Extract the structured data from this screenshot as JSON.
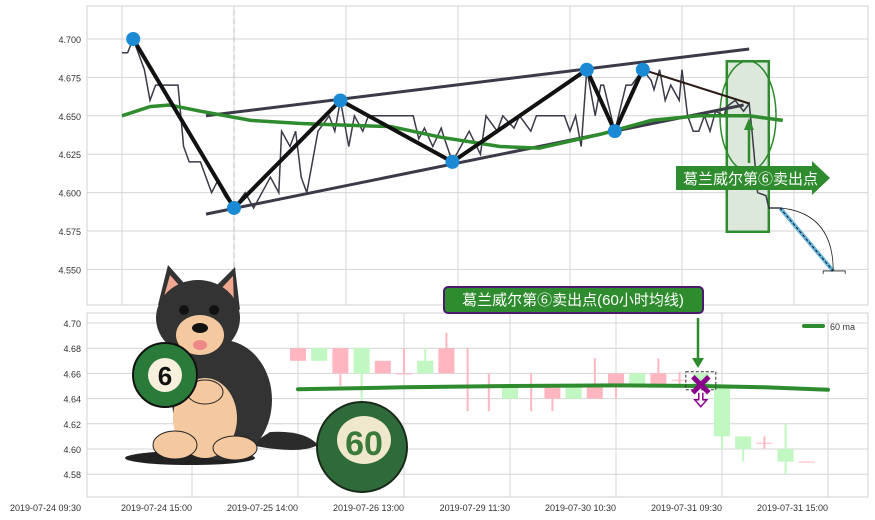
{
  "colors": {
    "price_line": "#3a3a48",
    "zigzag": "#111111",
    "pivot": "#1a8ad4",
    "ma": "#2e8b2e",
    "candle_up": "#ffb6c1",
    "candle_down": "#c1f7c1",
    "grid": "#d4d4d4",
    "annotation_green": "#2e8b2e",
    "annotation_border": "#4b1a6e",
    "sell_marker": "#8b008b"
  },
  "chart_data": [
    {
      "type": "line",
      "panel": "top",
      "ylim": [
        4.527,
        4.7215
      ],
      "xlim": [
        -12.5,
        266
      ],
      "grid": true,
      "yticks": [
        "4.700",
        "4.675",
        "4.650",
        "4.625",
        "4.600",
        "4.575",
        "4.550"
      ],
      "ytick_values": [
        4.7,
        4.675,
        4.65,
        4.625,
        4.6,
        4.575,
        4.55
      ],
      "xgrid_values": [
        0,
        40,
        80,
        120,
        160,
        200,
        240
      ],
      "dashed_vline": 40,
      "price": [
        [
          0,
          4.691
        ],
        [
          2,
          4.691
        ],
        [
          4,
          4.7
        ],
        [
          8,
          4.68
        ],
        [
          10,
          4.66
        ],
        [
          12,
          4.67
        ],
        [
          15,
          4.67
        ],
        [
          20,
          4.67
        ],
        [
          21,
          4.65
        ],
        [
          22,
          4.63
        ],
        [
          24,
          4.62
        ],
        [
          28,
          4.62
        ],
        [
          32,
          4.6
        ],
        [
          34,
          4.607
        ],
        [
          37,
          4.597
        ],
        [
          40,
          4.59
        ],
        [
          44,
          4.6
        ],
        [
          47,
          4.59
        ],
        [
          53,
          4.61
        ],
        [
          56,
          4.6
        ],
        [
          57,
          4.64
        ],
        [
          60,
          4.63
        ],
        [
          62,
          4.64
        ],
        [
          64,
          4.61
        ],
        [
          66,
          4.6
        ],
        [
          70,
          4.64
        ],
        [
          74,
          4.65
        ],
        [
          76,
          4.64
        ],
        [
          78,
          4.66
        ],
        [
          81,
          4.63
        ],
        [
          83,
          4.65
        ],
        [
          86,
          4.64
        ],
        [
          88,
          4.65
        ],
        [
          104,
          4.65
        ],
        [
          106,
          4.635
        ],
        [
          108,
          4.642
        ],
        [
          111,
          4.63
        ],
        [
          114,
          4.642
        ],
        [
          115,
          4.636
        ],
        [
          118,
          4.62
        ],
        [
          121,
          4.63
        ],
        [
          124,
          4.64
        ],
        [
          128,
          4.625
        ],
        [
          130,
          4.65
        ],
        [
          134,
          4.64
        ],
        [
          136,
          4.65
        ],
        [
          140,
          4.642
        ],
        [
          142,
          4.65
        ],
        [
          146,
          4.64
        ],
        [
          148,
          4.65
        ],
        [
          158,
          4.65
        ],
        [
          160,
          4.64
        ],
        [
          162,
          4.65
        ],
        [
          164,
          4.63
        ],
        [
          166,
          4.68
        ],
        [
          169,
          4.65
        ],
        [
          171,
          4.67
        ],
        [
          172,
          4.67
        ],
        [
          176,
          4.64
        ],
        [
          180,
          4.67
        ],
        [
          182,
          4.67
        ],
        [
          186,
          4.68
        ],
        [
          189,
          4.673
        ],
        [
          190,
          4.667
        ],
        [
          192,
          4.68
        ],
        [
          194,
          4.66
        ],
        [
          196,
          4.67
        ],
        [
          199,
          4.66
        ],
        [
          200,
          4.68
        ],
        [
          202,
          4.65
        ],
        [
          204,
          4.64
        ],
        [
          206,
          4.64
        ],
        [
          208,
          4.65
        ],
        [
          210,
          4.64
        ],
        [
          212,
          4.653
        ],
        [
          215,
          4.65
        ],
        [
          216,
          4.656
        ],
        [
          219,
          4.66
        ],
        [
          222,
          4.653
        ],
        [
          224,
          4.658
        ],
        [
          225,
          4.64
        ],
        [
          227,
          4.6
        ],
        [
          230,
          4.598
        ],
        [
          231,
          4.59
        ],
        [
          235,
          4.59
        ]
      ],
      "zigzag": [
        [
          4,
          4.7
        ],
        [
          40,
          4.59
        ],
        [
          78,
          4.66
        ],
        [
          118,
          4.62
        ],
        [
          166,
          4.68
        ],
        [
          176,
          4.64
        ],
        [
          186,
          4.68
        ]
      ],
      "trend_from_last_pivot": [
        [
          186,
          4.68
        ],
        [
          224,
          4.658
        ]
      ],
      "channel_upper": [
        [
          30,
          4.65
        ],
        [
          224,
          4.6935
        ]
      ],
      "channel_lower": [
        [
          30,
          4.586
        ],
        [
          222,
          4.657
        ]
      ],
      "ma": [
        [
          0,
          4.65
        ],
        [
          10,
          4.656
        ],
        [
          17,
          4.657
        ],
        [
          28,
          4.653
        ],
        [
          46,
          4.647
        ],
        [
          64,
          4.645
        ],
        [
          78,
          4.644
        ],
        [
          96,
          4.643
        ],
        [
          114,
          4.636
        ],
        [
          135,
          4.63
        ],
        [
          149,
          4.629
        ],
        [
          171,
          4.638
        ],
        [
          189,
          4.647
        ],
        [
          206,
          4.65
        ],
        [
          224,
          4.65
        ],
        [
          236,
          4.647
        ]
      ],
      "projection": [
        [
          235,
          4.59
        ],
        [
          254,
          4.549
        ]
      ],
      "highlight_range": {
        "x": [
          216,
          231
        ],
        "y": [
          4.5745,
          4.6855
        ]
      },
      "annotation": {
        "text": "葛兰威尔第⑥卖出点",
        "x": 224,
        "y": 4.658
      }
    },
    {
      "type": "candlestick",
      "panel": "bottom",
      "ylim": [
        4.562,
        4.708
      ],
      "xlim": [
        -9.9,
        26.9
      ],
      "grid": true,
      "yticks": [
        "4.70",
        "4.68",
        "4.66",
        "4.64",
        "4.62",
        "4.60",
        "4.58"
      ],
      "ytick_values": [
        4.7,
        4.68,
        4.66,
        4.64,
        4.62,
        4.6,
        4.58
      ],
      "xtick_labels": [
        "2019-07-24 09:30",
        "2019-07-24 15:00",
        "2019-07-25 14:00",
        "2019-07-26 13:00",
        "2019-07-29 11:30",
        "2019-07-30 10:30",
        "2019-07-31 09:30",
        "2019-07-31 15:00"
      ],
      "xtick_positions": [
        -10,
        -5,
        0,
        5,
        10,
        15,
        20,
        25
      ],
      "ohlc": [
        [
          4.67,
          4.68,
          4.67,
          4.68
        ],
        [
          4.68,
          4.68,
          4.67,
          4.67
        ],
        [
          4.66,
          4.68,
          4.65,
          4.68
        ],
        [
          4.68,
          4.68,
          4.635,
          4.66
        ],
        [
          4.66,
          4.67,
          4.66,
          4.67
        ],
        [
          4.66,
          4.68,
          4.66,
          4.66
        ],
        [
          4.67,
          4.68,
          4.66,
          4.66
        ],
        [
          4.66,
          4.692,
          4.66,
          4.68
        ],
        [
          4.65,
          4.68,
          4.63,
          4.65
        ],
        [
          4.65,
          4.66,
          4.63,
          4.65
        ],
        [
          4.651,
          4.651,
          4.64,
          4.64
        ],
        [
          4.65,
          4.66,
          4.63,
          4.65
        ],
        [
          4.64,
          4.651,
          4.63,
          4.651
        ],
        [
          4.651,
          4.651,
          4.64,
          4.64
        ],
        [
          4.64,
          4.672,
          4.64,
          4.651
        ],
        [
          4.651,
          4.66,
          4.64,
          4.66
        ],
        [
          4.66,
          4.66,
          4.651,
          4.651
        ],
        [
          4.651,
          4.672,
          4.651,
          4.66
        ],
        [
          4.655,
          4.661,
          4.651,
          4.655
        ],
        [
          4.66,
          4.66,
          4.65,
          4.65
        ],
        [
          4.65,
          4.65,
          4.6,
          4.61
        ],
        [
          4.61,
          4.61,
          4.59,
          4.6
        ],
        [
          4.605,
          4.61,
          4.6,
          4.605
        ],
        [
          4.6,
          4.62,
          4.58,
          4.59
        ],
        [
          4.59,
          4.59,
          4.59,
          4.59
        ]
      ],
      "ma": [
        [
          0,
          4.6475
        ],
        [
          5,
          4.649
        ],
        [
          10,
          4.65
        ],
        [
          15,
          4.6505
        ],
        [
          19,
          4.65
        ],
        [
          22,
          4.649
        ],
        [
          25,
          4.647
        ]
      ],
      "legend": {
        "label": "60 ma",
        "position": "top-right"
      },
      "sell_marker": {
        "x": 19,
        "y": 4.651
      },
      "annotation": {
        "text": "葛兰威尔第⑥卖出点(60小时均线)"
      }
    }
  ],
  "illustration": {
    "ball_small_label": "6",
    "ball_large_label": "60"
  }
}
